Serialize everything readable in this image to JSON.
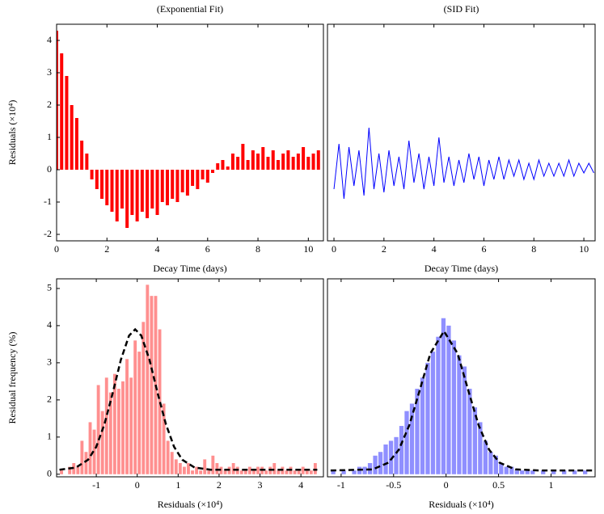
{
  "chart_data": [
    {
      "type": "stem",
      "title": "(Exponential Fit)",
      "xlabel": "Decay Time (days)",
      "ylabel": "Residuals (×10⁴)",
      "color": "#ff0000",
      "xlim": [
        0,
        10.6
      ],
      "xticks": [
        0,
        2,
        4,
        6,
        8,
        10
      ],
      "ylim": [
        -2.2,
        4.5
      ],
      "yticks": [
        -2,
        -1,
        0,
        1,
        2,
        3,
        4
      ],
      "x": [
        0,
        0.2,
        0.4,
        0.6,
        0.8,
        1.0,
        1.2,
        1.4,
        1.6,
        1.8,
        2.0,
        2.2,
        2.4,
        2.6,
        2.8,
        3.0,
        3.2,
        3.4,
        3.6,
        3.8,
        4.0,
        4.2,
        4.4,
        4.6,
        4.8,
        5.0,
        5.2,
        5.4,
        5.6,
        5.8,
        6.0,
        6.2,
        6.4,
        6.6,
        6.8,
        7.0,
        7.2,
        7.4,
        7.6,
        7.8,
        8.0,
        8.2,
        8.4,
        8.6,
        8.8,
        9.0,
        9.2,
        9.4,
        9.6,
        9.8,
        10.0,
        10.2,
        10.4
      ],
      "values": [
        4.3,
        3.6,
        2.9,
        2.0,
        1.6,
        0.9,
        0.5,
        -0.3,
        -0.6,
        -0.9,
        -1.1,
        -1.3,
        -1.6,
        -1.2,
        -1.8,
        -1.4,
        -1.6,
        -1.3,
        -1.5,
        -1.2,
        -1.4,
        -1.0,
        -1.1,
        -0.9,
        -1.0,
        -0.7,
        -0.8,
        -0.5,
        -0.6,
        -0.3,
        -0.4,
        -0.1,
        0.2,
        0.3,
        0.1,
        0.5,
        0.4,
        0.8,
        0.3,
        0.6,
        0.5,
        0.7,
        0.4,
        0.6,
        0.3,
        0.5,
        0.6,
        0.4,
        0.5,
        0.7,
        0.4,
        0.5,
        0.6
      ]
    },
    {
      "type": "line",
      "title": "(SID Fit)",
      "xlabel": "Decay Time (days)",
      "color": "#0000ff",
      "xlim": [
        -0.26,
        10.45
      ],
      "xticks": [
        0,
        2,
        4,
        6,
        8,
        10
      ],
      "ylim": [
        -2.2,
        4.5
      ],
      "x": [
        0,
        0.2,
        0.4,
        0.6,
        0.8,
        1.0,
        1.2,
        1.4,
        1.6,
        1.8,
        2.0,
        2.2,
        2.4,
        2.6,
        2.8,
        3.0,
        3.2,
        3.4,
        3.6,
        3.8,
        4.0,
        4.2,
        4.4,
        4.6,
        4.8,
        5.0,
        5.2,
        5.4,
        5.6,
        5.8,
        6.0,
        6.2,
        6.4,
        6.6,
        6.8,
        7.0,
        7.2,
        7.4,
        7.6,
        7.8,
        8.0,
        8.2,
        8.4,
        8.6,
        8.8,
        9.0,
        9.2,
        9.4,
        9.6,
        9.8,
        10.0,
        10.2,
        10.4
      ],
      "values": [
        -0.6,
        0.8,
        -0.9,
        0.7,
        -0.5,
        0.6,
        -0.8,
        1.3,
        -0.6,
        0.5,
        -0.7,
        0.6,
        -0.5,
        0.4,
        -0.6,
        0.9,
        -0.4,
        0.5,
        -0.6,
        0.4,
        -0.5,
        1.0,
        -0.4,
        0.4,
        -0.5,
        0.3,
        -0.4,
        0.5,
        -0.3,
        0.4,
        -0.5,
        0.3,
        -0.3,
        0.4,
        -0.3,
        0.3,
        -0.2,
        0.3,
        -0.3,
        0.2,
        -0.3,
        0.3,
        -0.2,
        0.2,
        -0.2,
        0.2,
        -0.2,
        0.3,
        -0.2,
        0.2,
        -0.1,
        0.2,
        -0.1
      ]
    },
    {
      "type": "histogram",
      "xlabel": "Residuals (×10⁴)",
      "ylabel": "Residual frequency (%)",
      "color": "#ff4444",
      "fit_color": "#000000",
      "xlim": [
        -1.97,
        4.55
      ],
      "xticks": [
        -1,
        0,
        1,
        2,
        3,
        4
      ],
      "ylim": [
        -0.07,
        5.26
      ],
      "yticks": [
        0,
        1,
        2,
        3,
        4,
        5
      ],
      "bins": [
        -1.9,
        -1.8,
        -1.7,
        -1.6,
        -1.5,
        -1.4,
        -1.3,
        -1.2,
        -1.1,
        -1.0,
        -0.9,
        -0.8,
        -0.7,
        -0.6,
        -0.5,
        -0.4,
        -0.3,
        -0.2,
        -0.1,
        0.0,
        0.1,
        0.2,
        0.3,
        0.4,
        0.5,
        0.6,
        0.7,
        0.8,
        0.9,
        1.0,
        1.1,
        1.2,
        1.3,
        1.4,
        1.5,
        1.6,
        1.7,
        1.8,
        1.9,
        2.0,
        2.1,
        2.2,
        2.3,
        2.4,
        2.5,
        2.6,
        2.7,
        2.8,
        2.9,
        3.0,
        3.1,
        3.2,
        3.3,
        3.4,
        3.5,
        3.6,
        3.7,
        3.8,
        3.9,
        4.0,
        4.1,
        4.2,
        4.3,
        4.4
      ],
      "values": [
        0.1,
        0.0,
        0.2,
        0.3,
        0.2,
        0.9,
        0.6,
        1.4,
        1.2,
        2.4,
        1.7,
        2.6,
        2.2,
        2.7,
        2.3,
        2.5,
        3.1,
        2.6,
        3.6,
        3.3,
        4.1,
        5.1,
        4.8,
        4.8,
        3.9,
        1.9,
        0.9,
        0.6,
        0.4,
        0.3,
        0.2,
        0.3,
        0.1,
        0.2,
        0.1,
        0.4,
        0.1,
        0.5,
        0.3,
        0.2,
        0.1,
        0.2,
        0.3,
        0.2,
        0.1,
        0.1,
        0.2,
        0.1,
        0.2,
        0.2,
        0.1,
        0.2,
        0.3,
        0.1,
        0.2,
        0.1,
        0.2,
        0.1,
        0.1,
        0.2,
        0.1,
        0.1,
        0.3
      ],
      "fit_x": [
        -1.9,
        -1.5,
        -1.2,
        -1.0,
        -0.8,
        -0.6,
        -0.4,
        -0.2,
        -0.05,
        0.1,
        0.3,
        0.5,
        0.7,
        0.9,
        1.1,
        1.4,
        1.8,
        2.5,
        3.5,
        4.4
      ],
      "fit_values": [
        0.12,
        0.18,
        0.39,
        0.74,
        1.35,
        2.18,
        3.08,
        3.73,
        3.9,
        3.73,
        3.08,
        2.18,
        1.35,
        0.74,
        0.39,
        0.18,
        0.12,
        0.12,
        0.12,
        0.12
      ]
    },
    {
      "type": "histogram",
      "xlabel": "Residuals (×10⁴)",
      "color": "#4444ff",
      "fit_color": "#000000",
      "xlim": [
        -1.13,
        1.42
      ],
      "xticks": [
        -1,
        -0.5,
        0,
        0.5,
        1
      ],
      "ylim": [
        -0.07,
        5.26
      ],
      "bins": [
        -1.1,
        -1.05,
        -1.0,
        -0.95,
        -0.9,
        -0.85,
        -0.8,
        -0.75,
        -0.7,
        -0.65,
        -0.6,
        -0.55,
        -0.5,
        -0.45,
        -0.4,
        -0.35,
        -0.3,
        -0.25,
        -0.2,
        -0.15,
        -0.1,
        -0.05,
        0.0,
        0.05,
        0.1,
        0.15,
        0.2,
        0.25,
        0.3,
        0.35,
        0.4,
        0.45,
        0.5,
        0.55,
        0.6,
        0.65,
        0.7,
        0.75,
        0.8,
        0.85,
        0.9,
        0.95,
        1.0,
        1.05,
        1.1,
        1.15,
        1.2,
        1.25,
        1.3,
        1.35,
        1.4
      ],
      "values": [
        0.1,
        0.0,
        0.1,
        0.0,
        0.1,
        0.2,
        0.2,
        0.3,
        0.5,
        0.6,
        0.8,
        0.9,
        1.0,
        1.3,
        1.7,
        1.9,
        2.3,
        2.6,
        3.0,
        3.3,
        3.7,
        4.2,
        4.0,
        3.6,
        3.2,
        2.9,
        2.3,
        1.8,
        1.4,
        0.9,
        0.6,
        0.5,
        0.3,
        0.2,
        0.2,
        0.1,
        0.1,
        0.1,
        0.1,
        0.0,
        0.1,
        0.0,
        0.1,
        0.0,
        0.1,
        0.0,
        0.1,
        0.0,
        0.1,
        0.0
      ],
      "fit_x": [
        -1.1,
        -0.7,
        -0.55,
        -0.45,
        -0.35,
        -0.25,
        -0.15,
        -0.02,
        0.11,
        0.21,
        0.31,
        0.41,
        0.51,
        0.66,
        0.9,
        1.2,
        1.42
      ],
      "fit_values": [
        0.1,
        0.13,
        0.31,
        0.66,
        1.32,
        2.27,
        3.25,
        3.85,
        3.25,
        2.27,
        1.32,
        0.66,
        0.31,
        0.13,
        0.1,
        0.1,
        0.1
      ]
    }
  ]
}
